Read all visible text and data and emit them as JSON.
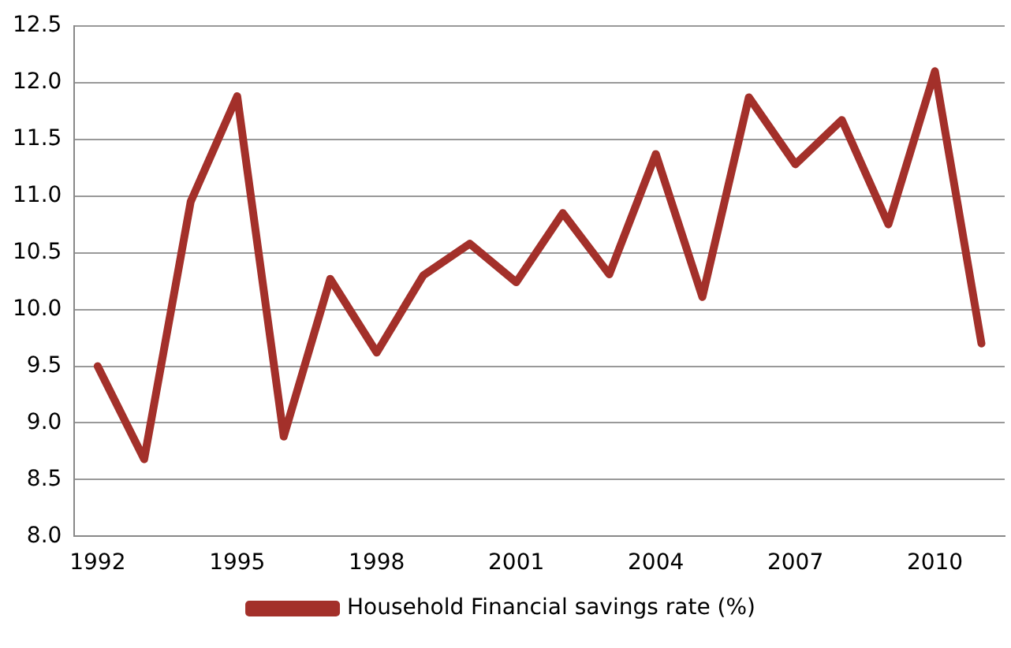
{
  "chart_data": {
    "type": "line",
    "categories": [
      "1992",
      null,
      null,
      "1995",
      null,
      null,
      "1998",
      null,
      null,
      "2001",
      null,
      null,
      "2004",
      null,
      null,
      "2007",
      null,
      null,
      "2010",
      null
    ],
    "series": [
      {
        "name": "Household Financial savings rate (%)",
        "color": "#a3302a",
        "values": [
          9.5,
          8.68,
          10.95,
          11.88,
          8.88,
          10.27,
          9.62,
          10.3,
          10.58,
          10.24,
          10.85,
          10.31,
          11.37,
          10.11,
          11.87,
          11.28,
          11.67,
          10.75,
          12.1,
          9.7
        ]
      }
    ],
    "ylim": [
      8,
      12.5
    ],
    "yticks": [
      {
        "value": 8,
        "label": "8.0"
      },
      {
        "value": 8.5,
        "label": "8.5"
      },
      {
        "value": 9,
        "label": "9.0"
      },
      {
        "value": 9.5,
        "label": "9.5"
      },
      {
        "value": 10,
        "label": "10.0"
      },
      {
        "value": 10.5,
        "label": "10.5"
      },
      {
        "value": 11,
        "label": "11.0"
      },
      {
        "value": 11.5,
        "label": "11.5"
      },
      {
        "value": 12,
        "label": "12.0"
      },
      {
        "value": 12.5,
        "label": "12.5"
      }
    ],
    "grid": "y",
    "legend": "bottom",
    "marker": "none",
    "line_style": "solid"
  }
}
